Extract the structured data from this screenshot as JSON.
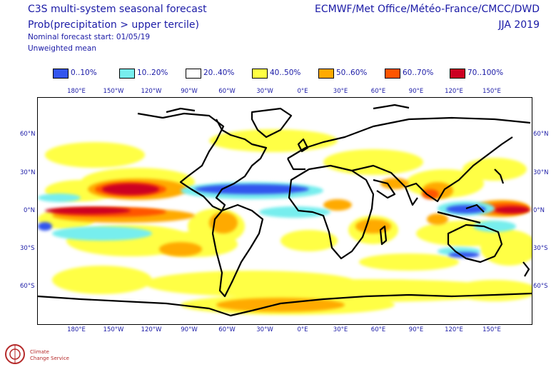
{
  "header": {
    "title": "C3S multi-system seasonal forecast",
    "subtitle": "Prob(precipitation > upper tercile)",
    "start": "Nominal forecast start: 01/05/19",
    "mean": "Unweighted mean",
    "providers": "ECMWF/Met Office/Météo-France/CMCC/DWD",
    "season": "JJA 2019"
  },
  "legend": [
    {
      "label": "0..10%",
      "color": "#3355ee"
    },
    {
      "label": "10..20%",
      "color": "#77eeee"
    },
    {
      "label": "20..40%",
      "color": "#ffffff"
    },
    {
      "label": "40..50%",
      "color": "#ffff44"
    },
    {
      "label": "50..60%",
      "color": "#ffaa00"
    },
    {
      "label": "60..70%",
      "color": "#ff5500"
    },
    {
      "label": "70..100%",
      "color": "#cc0022"
    }
  ],
  "lon_labels": [
    "180°E",
    "150°W",
    "120°W",
    "90°W",
    "60°W",
    "30°W",
    "0°E",
    "30°E",
    "60°E",
    "90°E",
    "120°E",
    "150°E"
  ],
  "lat_labels": [
    "60°N",
    "30°N",
    "0°N",
    "30°S",
    "60°S"
  ],
  "logo": {
    "line1": "Climate",
    "line2": "Change Service"
  }
}
